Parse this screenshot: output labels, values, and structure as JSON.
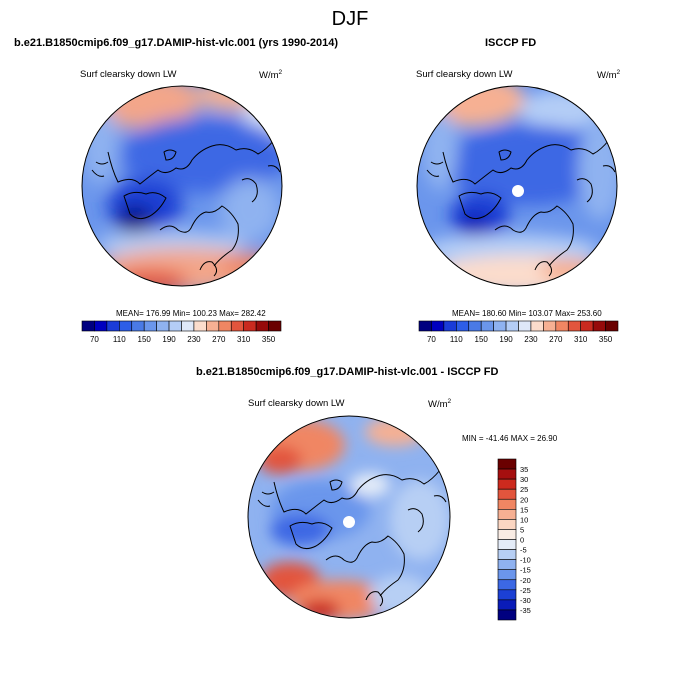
{
  "figure": {
    "title": "DJF"
  },
  "panels": [
    {
      "heading": "b.e21.B1850cmip6.f09_g17.DAMIP-hist-vlc.001 (yrs 1990-2014)",
      "variable": "Surf clearsky down LW",
      "units": "W/m",
      "units_exp": "2",
      "stats": "MEAN= 176.99  Min= 100.23  Max= 282.42"
    },
    {
      "heading": "ISCCP FD",
      "variable": "Surf clearsky down LW",
      "units": "W/m",
      "units_exp": "2",
      "stats": "MEAN= 180.60  Min= 103.07  Max= 253.60"
    },
    {
      "heading": "b.e21.B1850cmip6.f09_g17.DAMIP-hist-vlc.001 - ISCCP FD",
      "variable": "Surf clearsky down LW",
      "units": "W/m",
      "units_exp": "2",
      "stats": "MIN = -41.46  MAX =  26.90"
    }
  ],
  "chart_data": [
    {
      "type": "heatmap",
      "projection": "north-polar-stereographic",
      "title": "b.e21.B1850cmip6.f09_g17.DAMIP-hist-vlc.001 (yrs 1990-2014)",
      "variable": "Surf clearsky down LW",
      "units": "W/m2",
      "mean": 176.99,
      "min": 100.23,
      "max": 282.42,
      "colorbar_levels": [
        70,
        90,
        110,
        130,
        150,
        170,
        190,
        210,
        230,
        250,
        270,
        290,
        310,
        330,
        350
      ],
      "colorbar_ticks": [
        "70",
        "110",
        "150",
        "190",
        "230",
        "270",
        "310",
        "350"
      ],
      "colorbar_colors": [
        "#000080",
        "#0000c0",
        "#1a3cd8",
        "#2d5ee8",
        "#4a7ae6",
        "#6b96ec",
        "#8fb2f0",
        "#b4cdf6",
        "#dfe8f8",
        "#fbdccc",
        "#f6b093",
        "#f08663",
        "#e2553d",
        "#c92a1f",
        "#960a0a",
        "#6a0000"
      ]
    },
    {
      "type": "heatmap",
      "projection": "north-polar-stereographic",
      "title": "ISCCP FD",
      "variable": "Surf clearsky down LW",
      "units": "W/m2",
      "mean": 180.6,
      "min": 103.07,
      "max": 253.6,
      "colorbar_levels": [
        70,
        90,
        110,
        130,
        150,
        170,
        190,
        210,
        230,
        250,
        270,
        290,
        310,
        330,
        350
      ],
      "colorbar_ticks": [
        "70",
        "110",
        "150",
        "190",
        "230",
        "270",
        "310",
        "350"
      ],
      "colorbar_colors": [
        "#000080",
        "#0000c0",
        "#1a3cd8",
        "#2d5ee8",
        "#4a7ae6",
        "#6b96ec",
        "#8fb2f0",
        "#b4cdf6",
        "#dfe8f8",
        "#fbdccc",
        "#f6b093",
        "#f08663",
        "#e2553d",
        "#c92a1f",
        "#960a0a",
        "#6a0000"
      ]
    },
    {
      "type": "heatmap",
      "projection": "north-polar-stereographic",
      "title": "b.e21.B1850cmip6.f09_g17.DAMIP-hist-vlc.001 - ISCCP FD",
      "variable": "Surf clearsky down LW",
      "units": "W/m2",
      "min": -41.46,
      "max": 26.9,
      "colorbar_orientation": "vertical",
      "colorbar_ticks": [
        "35",
        "30",
        "25",
        "20",
        "15",
        "10",
        "5",
        "0",
        "-5",
        "-10",
        "-15",
        "-20",
        "-25",
        "-30",
        "-35"
      ],
      "colorbar_colors": [
        "#6a0000",
        "#a50f0f",
        "#cc2a1e",
        "#e2553d",
        "#f08663",
        "#f6b093",
        "#fbd6c2",
        "#f9ece4",
        "#e4ecf8",
        "#b7cff4",
        "#8fb2f0",
        "#6b96ec",
        "#3c68e4",
        "#1c40d4",
        "#0a1cb8",
        "#000080"
      ]
    }
  ]
}
